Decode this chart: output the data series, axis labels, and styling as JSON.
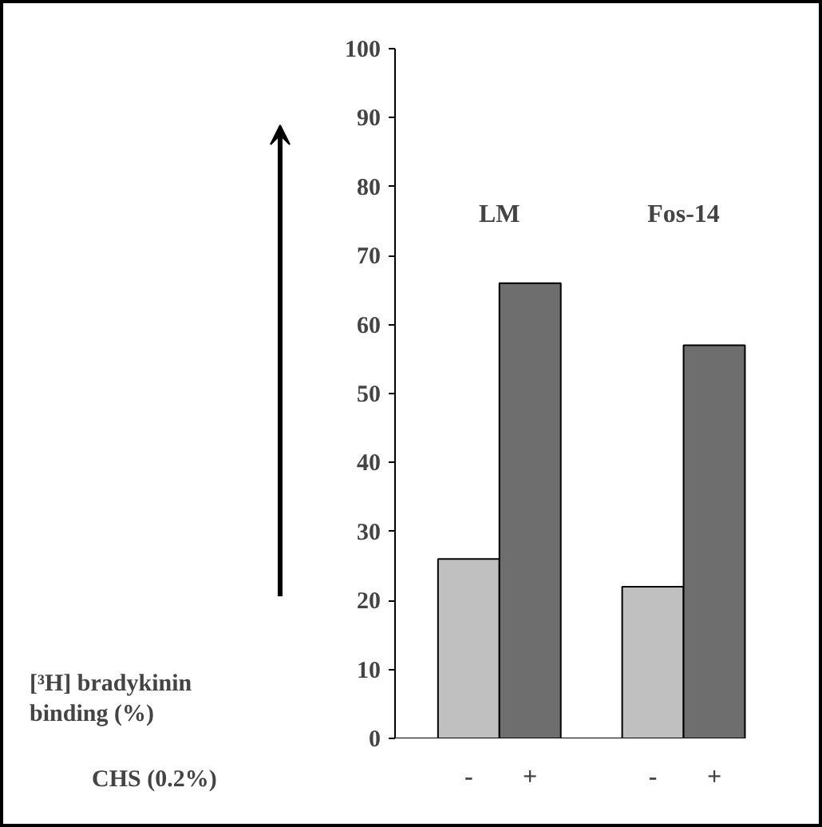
{
  "chart_data": {
    "type": "bar",
    "categories": [
      "-",
      "+",
      "-",
      "+"
    ],
    "values": [
      26,
      66,
      22,
      57
    ],
    "colors": [
      "#c0c0c0",
      "#6e6e6e",
      "#c0c0c0",
      "#6e6e6e"
    ],
    "annotations": [
      "LM",
      "Fos-14",
      "CHS (0.2%)",
      "[³H] bradykinin\nbinding (%)"
    ],
    "ylim": [
      0,
      100
    ],
    "yticks": [
      0,
      10,
      20,
      30,
      40,
      50,
      60,
      70,
      80,
      90,
      100
    ],
    "grid": false
  }
}
